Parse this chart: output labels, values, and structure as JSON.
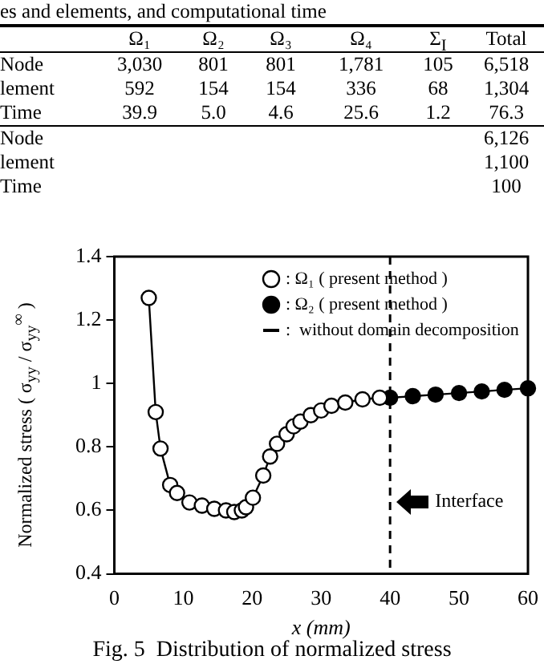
{
  "chart_data": [
    {
      "type": "other",
      "title": "es and elements, and computational time",
      "annotations": [
        "\tΩ₁\tΩ₂\tΩ₃\tΩ₄\tΣ$_{I}$\tTotal",
        "Node\t3,030\t801\t801\t1,781\t105\t6,518",
        "lement\t592\t154\t154\t336\t68\t1,304",
        "Time\t39.9\t5.0\t4.6\t25.6\t1.2\t76.3",
        "Node\t\t\t\t\t\t6,126",
        "lement\t\t\t\t\t\t1,100",
        "Time\t\t\t\t\t\t100"
      ]
    },
    {
      "type": "line",
      "xlabel": "x (mm)",
      "ylabel": "Normalized stress ( σ$_{yy}$ / σ$_{yy}$$^{∞}$ )",
      "xlim": [
        0,
        60
      ],
      "xticks": [
        0,
        10,
        20,
        30,
        40,
        50,
        60
      ],
      "ylim": [
        0.4,
        1.4
      ],
      "yticks": [
        0.4,
        0.6,
        0.8,
        1,
        1.2,
        1.4
      ],
      "grid": false,
      "legend": "top right",
      "series": [
        {
          "name": ": Ω₁ ( present method )",
          "type": "scatter",
          "marker": "circle",
          "color": "#000000",
          "x": [
            5,
            6,
            6.7,
            8.1,
            9.1,
            10.9,
            12.7,
            14.5,
            16.2,
            17.4,
            18.5,
            19.1,
            20.1,
            21.6,
            22.6,
            23.6,
            25,
            26,
            27,
            28.5,
            30,
            31.5,
            33.5,
            36,
            38.5
          ],
          "values": [
            1.27,
            0.91,
            0.795,
            0.68,
            0.655,
            0.625,
            0.615,
            0.605,
            0.6,
            0.595,
            0.6,
            0.61,
            0.64,
            0.71,
            0.77,
            0.81,
            0.84,
            0.865,
            0.88,
            0.9,
            0.915,
            0.93,
            0.94,
            0.95,
            0.955
          ]
        },
        {
          "name": ": Ω₂ ( present method )",
          "type": "scatter",
          "marker": "circle",
          "color": "#000000",
          "x": [
            40,
            43.3,
            46.6,
            50,
            53.3,
            56.6,
            60
          ],
          "values": [
            0.955,
            0.96,
            0.965,
            0.97,
            0.975,
            0.98,
            0.985
          ]
        },
        {
          "name": ":  without domain decomposition",
          "type": "line",
          "marker": "none",
          "line_style": "solid",
          "color": "#000000",
          "x": [
            5,
            6,
            6.7,
            8.1,
            9.1,
            10.9,
            12.7,
            14.5,
            16.2,
            17.4,
            18.5,
            19.1,
            20.1,
            21.6,
            22.6,
            23.6,
            25,
            26,
            27,
            28.5,
            30,
            31.5,
            33.5,
            36,
            38.5,
            40,
            43.3,
            46.6,
            50,
            53.3,
            56.6,
            60
          ],
          "values": [
            1.27,
            0.91,
            0.795,
            0.68,
            0.655,
            0.625,
            0.615,
            0.605,
            0.6,
            0.595,
            0.6,
            0.61,
            0.64,
            0.71,
            0.77,
            0.81,
            0.84,
            0.865,
            0.88,
            0.9,
            0.915,
            0.93,
            0.94,
            0.95,
            0.955,
            0.955,
            0.96,
            0.965,
            0.97,
            0.975,
            0.98,
            0.985
          ]
        }
      ],
      "ref_lines": [
        {
          "axis": "x",
          "value": 40,
          "label": "Interface",
          "line_style": "dashed",
          "color": "#000000"
        }
      ],
      "annotations": [
        "Fig. 5  Distribution of normalized stress"
      ]
    }
  ]
}
